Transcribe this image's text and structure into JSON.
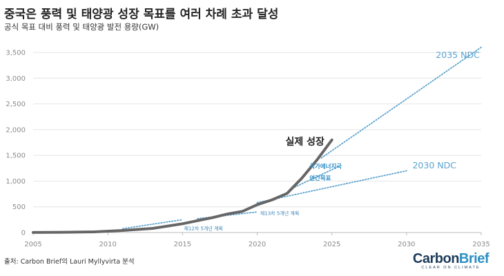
{
  "title": "중국은 풍력 및 태양광 성장 목표를 여러 차례 초과 달성",
  "subtitle": "공식 목표 대비 풍력 및 태양광 발전 용량(GW)",
  "source": "출처: Carbon Brief의 Lauri Myllyvirta 분석",
  "logo": {
    "part1": "Carbon",
    "part2": "Brief",
    "tagline": "CLEAR ON CLIMATE",
    "color1": "#1c3a5a",
    "color2": "#2a8fc4"
  },
  "chart_data": {
    "type": "line",
    "title": "중국은 풍력 및 태양광 성장 목표를 여러 차례 초과 달성",
    "ylabel": "GW",
    "xlim": [
      2005,
      2035
    ],
    "ylim": [
      0,
      3500
    ],
    "xticks": [
      2005,
      2010,
      2015,
      2020,
      2025,
      2030,
      2035
    ],
    "yticks": [
      0,
      500,
      1000,
      1500,
      2000,
      2500,
      3000,
      3500
    ],
    "ytick_labels": [
      "0",
      "500",
      "1,000",
      "1,500",
      "2,000",
      "2,500",
      "3,000",
      "3,500"
    ],
    "grid": true,
    "series": [
      {
        "name": "실제 성장",
        "style": "solid",
        "color": "#666666",
        "x": [
          2005,
          2007,
          2009,
          2011,
          2013,
          2015,
          2016,
          2017,
          2018,
          2019,
          2020,
          2021,
          2022,
          2023,
          2024,
          2025
        ],
        "y": [
          2,
          5,
          12,
          40,
          80,
          170,
          230,
          290,
          360,
          410,
          540,
          635,
          760,
          1060,
          1410,
          1800
        ]
      },
      {
        "name": "2035 NDC",
        "style": "dotted",
        "color": "#5ba3cf",
        "x": [
          2024.3,
          2035
        ],
        "y": [
          1450,
          3600
        ]
      },
      {
        "name": "2030 NDC",
        "style": "dotted",
        "color": "#5ba3cf",
        "x": [
          2020,
          2030
        ],
        "y": [
          580,
          1200
        ]
      },
      {
        "name": "국가에너지국 연간목표",
        "style": "dotted",
        "color": "#5ba3cf",
        "x": [
          2022.5,
          2025.5
        ],
        "y": [
          880,
          1290
        ]
      },
      {
        "name": "제13차 5개년 계획",
        "style": "dotted",
        "color": "#5ba3cf",
        "x": [
          2016,
          2020
        ],
        "y": [
          270,
          400
        ]
      },
      {
        "name": "제12차 5개년 계획",
        "style": "dotted",
        "color": "#5ba3cf",
        "x": [
          2011,
          2015
        ],
        "y": [
          75,
          250
        ]
      }
    ],
    "annotations": {
      "actual": "실제 성장",
      "ndc2035": "2035 NDC",
      "ndc2030": "2030 NDC",
      "nea_line1": "국가에너지국",
      "nea_line2": "연간목표",
      "plan13": "제13차 5개년 계획",
      "plan12": "제12차 5개년 계획"
    }
  }
}
